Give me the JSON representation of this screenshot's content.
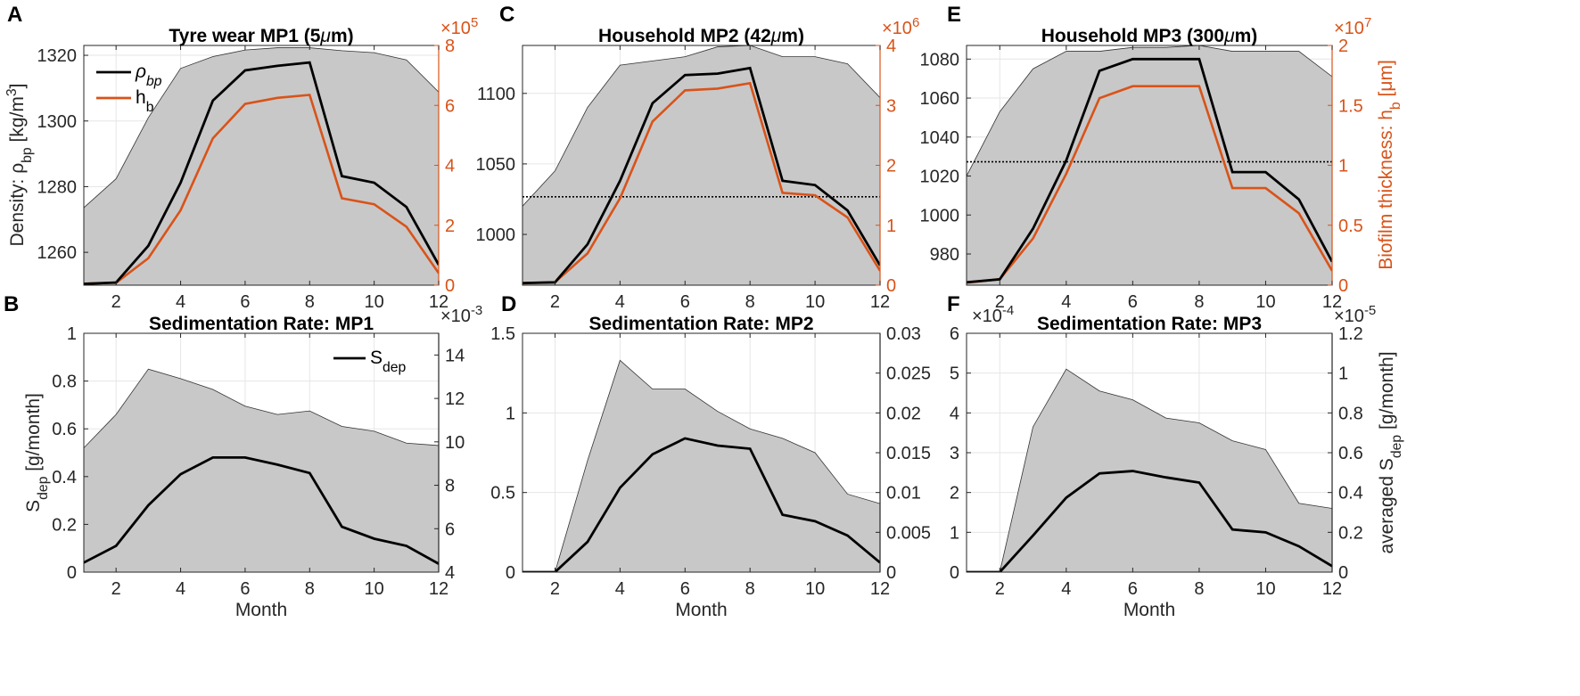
{
  "colors": {
    "rho": "#000000",
    "hb": "#d95319",
    "envelope": "#c8c8c8",
    "grid": "#e6e6e6",
    "axis": "#262626"
  },
  "chart_data": [
    {
      "id": "A",
      "type": "area+line",
      "title": "Tyre wear MP1 (5μm)",
      "xlabel": "",
      "ylabel": "Density: ρbp [kg/m3]",
      "ylabel_right": "",
      "xlim": [
        1,
        12
      ],
      "ylim_left": [
        1250,
        1323
      ],
      "ylim_right": [
        0,
        8
      ],
      "right_exponent_base": "×10",
      "right_exponent_power": "5",
      "right_axis_color": "orange",
      "x": [
        1,
        2,
        3,
        4,
        5,
        6,
        7,
        8,
        9,
        10,
        11,
        12
      ],
      "x_ticks": [
        2,
        4,
        6,
        8,
        10,
        12
      ],
      "left_ticks": [
        1260,
        1280,
        1300,
        1320
      ],
      "right_ticks": [
        0,
        2,
        4,
        6,
        8
      ],
      "envelope": [
        1273.6,
        1282.4,
        1301,
        1316,
        1319.6,
        1321.6,
        1322.3,
        1322.3,
        1321.4,
        1320.8,
        1318.6,
        1308.8
      ],
      "rho_bp": [
        1250.4,
        1250.8,
        1262,
        1281.2,
        1306.2,
        1315.4,
        1316.8,
        1317.8,
        1283.2,
        1281.2,
        1273.8,
        1256.2
      ],
      "h_b": [
        0.05,
        0.08,
        0.9,
        2.5,
        4.9,
        6.05,
        6.25,
        6.35,
        2.9,
        2.7,
        1.95,
        0.4
      ],
      "hline": null,
      "legend": [
        {
          "name": "ρ",
          "sub": "bp"
        },
        {
          "name": "h",
          "sub": "b"
        }
      ]
    },
    {
      "id": "C",
      "type": "area+line",
      "title": "Household MP2 (42μm)",
      "xlabel": "",
      "ylabel": "",
      "ylabel_right": "",
      "xlim": [
        1,
        12
      ],
      "ylim_left": [
        964,
        1134
      ],
      "ylim_right": [
        0,
        4
      ],
      "right_exponent_base": "×10",
      "right_exponent_power": "6",
      "right_axis_color": "orange",
      "x": [
        1,
        2,
        3,
        4,
        5,
        6,
        7,
        8,
        9,
        10,
        11,
        12
      ],
      "x_ticks": [
        2,
        4,
        6,
        8,
        10,
        12
      ],
      "left_ticks": [
        1000,
        1050,
        1100
      ],
      "right_ticks": [
        0,
        1,
        2,
        3,
        4
      ],
      "envelope": [
        1020,
        1045,
        1090,
        1120,
        1123,
        1126,
        1133,
        1134,
        1126,
        1126,
        1121,
        1097
      ],
      "rho_bp": [
        965.5,
        966,
        993,
        1038,
        1093,
        1113,
        1114,
        1118,
        1038,
        1035,
        1017,
        978
      ],
      "h_b": [
        0.03,
        0.05,
        0.53,
        1.45,
        2.73,
        3.25,
        3.28,
        3.37,
        1.54,
        1.5,
        1.13,
        0.24
      ],
      "hline": 1026.7,
      "legend": []
    },
    {
      "id": "E",
      "type": "area+line",
      "title": "Household MP3 (300μm)",
      "xlabel": "",
      "ylabel": "",
      "ylabel_right": "Biofilm thickness: hb [μm]",
      "xlim": [
        1,
        12
      ],
      "ylim_left": [
        964,
        1087
      ],
      "ylim_right": [
        0,
        2
      ],
      "right_exponent_base": "×10",
      "right_exponent_power": "7",
      "right_axis_color": "orange",
      "x": [
        1,
        2,
        3,
        4,
        5,
        6,
        7,
        8,
        9,
        10,
        11,
        12
      ],
      "x_ticks": [
        2,
        4,
        6,
        8,
        10,
        12
      ],
      "left_ticks": [
        980,
        1000,
        1020,
        1040,
        1060,
        1080
      ],
      "right_ticks": [
        0,
        0.5,
        1,
        1.5,
        2
      ],
      "envelope": [
        1020,
        1053,
        1075,
        1084,
        1084,
        1086,
        1086,
        1087,
        1084,
        1084,
        1084,
        1071
      ],
      "rho_bp": [
        965.5,
        967,
        993,
        1028,
        1074,
        1080,
        1080,
        1080,
        1022,
        1022,
        1008,
        976
      ],
      "h_b": [
        0.02,
        0.05,
        0.39,
        0.93,
        1.56,
        1.66,
        1.66,
        1.66,
        0.81,
        0.81,
        0.6,
        0.12
      ],
      "hline": 1027.3,
      "legend": []
    },
    {
      "id": "B",
      "type": "area+line",
      "title": "Sedimentation Rate: MP1",
      "xlabel": "",
      "ylabel": "Sdep [g/month]",
      "ylabel_right": "",
      "xlim": [
        1,
        12
      ],
      "ylim_left": [
        0,
        1
      ],
      "ylim_right": [
        4,
        15
      ],
      "right_exponent_base": "×10",
      "right_exponent_power": "-3",
      "right_axis_color": "dark",
      "x": [
        1,
        2,
        3,
        4,
        5,
        6,
        7,
        8,
        9,
        10,
        11,
        12
      ],
      "x_ticks": [
        2,
        4,
        6,
        8,
        10,
        12
      ],
      "left_ticks": [
        0,
        0.2,
        0.4,
        0.6,
        0.8,
        1
      ],
      "right_ticks": [
        4,
        6,
        8,
        10,
        12,
        14
      ],
      "envelope": [
        0.52,
        0.66,
        0.85,
        0.81,
        0.765,
        0.695,
        0.66,
        0.675,
        0.61,
        0.59,
        0.54,
        0.53
      ],
      "s_dep": [
        0.04,
        0.11,
        0.28,
        0.41,
        0.48,
        0.48,
        0.45,
        0.415,
        0.19,
        0.14,
        0.11,
        0.035
      ],
      "legend": [
        {
          "name": "S",
          "sub": "dep"
        }
      ]
    },
    {
      "id": "D",
      "type": "area+line",
      "title": "Sedimentation Rate: MP2",
      "xlabel": "Month",
      "ylabel": "",
      "ylabel_right": "",
      "xlim": [
        1,
        12
      ],
      "ylim_left": [
        0,
        1.5
      ],
      "ylim_right": [
        0,
        0.03
      ],
      "right_exponent_base": "",
      "right_exponent_power": "",
      "right_axis_color": "dark",
      "x": [
        1,
        2,
        3,
        4,
        5,
        6,
        7,
        8,
        9,
        10,
        11,
        12
      ],
      "x_ticks": [
        2,
        4,
        6,
        8,
        10,
        12
      ],
      "left_ticks": [
        0,
        0.5,
        1,
        1.5
      ],
      "right_ticks": [
        0,
        0.005,
        0.01,
        0.015,
        0.02,
        0.025,
        0.03
      ],
      "envelope": [
        0,
        0,
        0.7,
        1.33,
        1.15,
        1.15,
        1.01,
        0.9,
        0.84,
        0.75,
        0.49,
        0.43
      ],
      "s_dep": [
        0,
        0,
        0.19,
        0.53,
        0.74,
        0.84,
        0.795,
        0.775,
        0.36,
        0.32,
        0.23,
        0.06
      ],
      "legend": []
    },
    {
      "id": "F",
      "type": "area+line",
      "title": "Sedimentation Rate: MP3",
      "xlabel": "Month",
      "ylabel": "",
      "ylabel_right": "averaged Sdep [g/month]",
      "xlim": [
        1,
        12
      ],
      "ylim_left": [
        0,
        6
      ],
      "ylim_right": [
        0,
        1.2
      ],
      "left_exponent_base": "×10",
      "left_exponent_power": "-4",
      "right_exponent_base": "×10",
      "right_exponent_power": "-5",
      "right_axis_color": "dark",
      "x": [
        1,
        2,
        3,
        4,
        5,
        6,
        7,
        8,
        9,
        10,
        11,
        12
      ],
      "x_ticks": [
        2,
        4,
        6,
        8,
        10,
        12
      ],
      "left_ticks": [
        0,
        1,
        2,
        3,
        4,
        5,
        6
      ],
      "right_ticks": [
        0,
        0.2,
        0.4,
        0.6,
        0.8,
        1,
        1.2
      ],
      "envelope": [
        0,
        0,
        3.65,
        5.1,
        4.55,
        4.33,
        3.87,
        3.75,
        3.3,
        3.08,
        1.73,
        1.6
      ],
      "s_dep": [
        0,
        0,
        0.92,
        1.87,
        2.48,
        2.54,
        2.38,
        2.25,
        1.07,
        1,
        0.65,
        0.15
      ],
      "legend": []
    }
  ],
  "panel_letters": [
    "A",
    "B",
    "C",
    "D",
    "E",
    "F"
  ],
  "xlabel_B": "Month"
}
